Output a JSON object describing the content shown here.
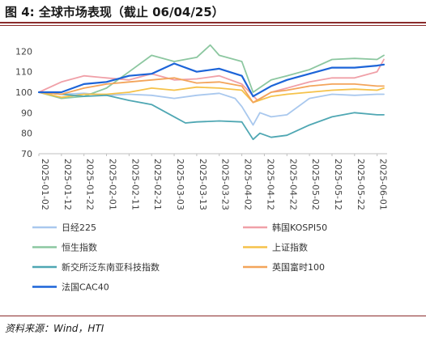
{
  "figure": {
    "title": "图 4:  全球市场表现（截止 06/04/25）",
    "source": "资料来源：Wind，HTI"
  },
  "chart_data": {
    "type": "line",
    "ylim": [
      70,
      130
    ],
    "yticks": [
      70,
      80,
      90,
      100,
      110,
      120
    ],
    "xlim": [
      "2025-01-02",
      "2025-06-04"
    ],
    "x_ticks": [
      "2025-01-02",
      "2025-01-12",
      "2025-01-22",
      "2025-02-01",
      "2025-02-11",
      "2025-02-21",
      "2025-03-03",
      "2025-03-13",
      "2025-03-23",
      "2025-04-02",
      "2025-04-12",
      "2025-04-22",
      "2025-05-02",
      "2025-05-12",
      "2025-05-22",
      "2025-06-01"
    ],
    "grid": false,
    "legend_position": "bottom",
    "series": [
      {
        "name": "日经225",
        "color": "#a9c8ee",
        "points": [
          [
            "2025-01-02",
            100
          ],
          [
            "2025-01-12",
            99
          ],
          [
            "2025-01-22",
            99.5
          ],
          [
            "2025-02-01",
            98.5
          ],
          [
            "2025-02-11",
            99
          ],
          [
            "2025-02-21",
            98.5
          ],
          [
            "2025-03-03",
            97
          ],
          [
            "2025-03-13",
            98.5
          ],
          [
            "2025-03-23",
            99.5
          ],
          [
            "2025-03-30",
            97
          ],
          [
            "2025-04-02",
            93
          ],
          [
            "2025-04-07",
            84
          ],
          [
            "2025-04-10",
            90
          ],
          [
            "2025-04-15",
            88
          ],
          [
            "2025-04-22",
            89
          ],
          [
            "2025-05-02",
            97
          ],
          [
            "2025-05-12",
            99
          ],
          [
            "2025-05-22",
            98.5
          ],
          [
            "2025-06-01",
            99
          ],
          [
            "2025-06-04",
            99
          ]
        ]
      },
      {
        "name": "韩国KOSPI50",
        "color": "#f0a0a8",
        "points": [
          [
            "2025-01-02",
            100
          ],
          [
            "2025-01-12",
            105
          ],
          [
            "2025-01-22",
            108
          ],
          [
            "2025-02-01",
            107
          ],
          [
            "2025-02-11",
            106
          ],
          [
            "2025-02-21",
            109
          ],
          [
            "2025-03-03",
            106
          ],
          [
            "2025-03-13",
            106.5
          ],
          [
            "2025-03-23",
            108
          ],
          [
            "2025-04-02",
            104
          ],
          [
            "2025-04-09",
            96
          ],
          [
            "2025-04-15",
            100
          ],
          [
            "2025-04-22",
            102
          ],
          [
            "2025-05-02",
            105
          ],
          [
            "2025-05-12",
            107
          ],
          [
            "2025-05-22",
            107
          ],
          [
            "2025-06-01",
            110
          ],
          [
            "2025-06-04",
            116
          ]
        ]
      },
      {
        "name": "恒生指数",
        "color": "#8cc7a0",
        "points": [
          [
            "2025-01-02",
            100
          ],
          [
            "2025-01-12",
            97
          ],
          [
            "2025-01-22",
            98
          ],
          [
            "2025-02-01",
            102
          ],
          [
            "2025-02-11",
            110
          ],
          [
            "2025-02-21",
            118
          ],
          [
            "2025-03-03",
            115
          ],
          [
            "2025-03-13",
            117
          ],
          [
            "2025-03-19",
            123
          ],
          [
            "2025-03-23",
            118
          ],
          [
            "2025-04-02",
            115
          ],
          [
            "2025-04-07",
            100
          ],
          [
            "2025-04-15",
            106
          ],
          [
            "2025-04-22",
            108
          ],
          [
            "2025-05-02",
            111
          ],
          [
            "2025-05-12",
            116
          ],
          [
            "2025-05-22",
            116.5
          ],
          [
            "2025-06-01",
            116
          ],
          [
            "2025-06-04",
            118
          ]
        ]
      },
      {
        "name": "上证指数",
        "color": "#f5c24a",
        "points": [
          [
            "2025-01-02",
            100
          ],
          [
            "2025-01-12",
            97.5
          ],
          [
            "2025-01-22",
            99
          ],
          [
            "2025-02-01",
            99
          ],
          [
            "2025-02-11",
            100
          ],
          [
            "2025-02-21",
            102
          ],
          [
            "2025-03-03",
            101
          ],
          [
            "2025-03-13",
            102.5
          ],
          [
            "2025-03-23",
            102
          ],
          [
            "2025-04-02",
            101
          ],
          [
            "2025-04-07",
            95
          ],
          [
            "2025-04-15",
            98
          ],
          [
            "2025-04-22",
            99
          ],
          [
            "2025-05-02",
            100
          ],
          [
            "2025-05-12",
            101
          ],
          [
            "2025-05-22",
            101.5
          ],
          [
            "2025-06-01",
            101
          ],
          [
            "2025-06-04",
            102
          ]
        ]
      },
      {
        "name": "新交所泛东南亚科技指数",
        "color": "#4fa7b3",
        "points": [
          [
            "2025-01-02",
            100
          ],
          [
            "2025-01-12",
            99
          ],
          [
            "2025-01-22",
            98
          ],
          [
            "2025-02-01",
            98.5
          ],
          [
            "2025-02-11",
            96
          ],
          [
            "2025-02-21",
            94
          ],
          [
            "2025-03-03",
            88
          ],
          [
            "2025-03-08",
            85
          ],
          [
            "2025-03-13",
            85.5
          ],
          [
            "2025-03-23",
            86
          ],
          [
            "2025-04-02",
            85.5
          ],
          [
            "2025-04-07",
            77
          ],
          [
            "2025-04-10",
            80
          ],
          [
            "2025-04-15",
            78
          ],
          [
            "2025-04-22",
            79
          ],
          [
            "2025-05-02",
            84
          ],
          [
            "2025-05-12",
            88
          ],
          [
            "2025-05-22",
            90
          ],
          [
            "2025-06-01",
            89
          ],
          [
            "2025-06-04",
            89
          ]
        ]
      },
      {
        "name": "英国富时100",
        "color": "#f3a45a",
        "points": [
          [
            "2025-01-02",
            100
          ],
          [
            "2025-01-12",
            99
          ],
          [
            "2025-01-22",
            102
          ],
          [
            "2025-02-01",
            104
          ],
          [
            "2025-02-11",
            105
          ],
          [
            "2025-02-21",
            106
          ],
          [
            "2025-03-03",
            107
          ],
          [
            "2025-03-13",
            104.5
          ],
          [
            "2025-03-23",
            105
          ],
          [
            "2025-04-02",
            103
          ],
          [
            "2025-04-07",
            95
          ],
          [
            "2025-04-15",
            100
          ],
          [
            "2025-04-22",
            101
          ],
          [
            "2025-05-02",
            103
          ],
          [
            "2025-05-12",
            104
          ],
          [
            "2025-05-22",
            104
          ],
          [
            "2025-06-01",
            103
          ],
          [
            "2025-06-04",
            103
          ]
        ]
      },
      {
        "name": "法国CAC40",
        "color": "#1c64d8",
        "points": [
          [
            "2025-01-02",
            100
          ],
          [
            "2025-01-12",
            100
          ],
          [
            "2025-01-22",
            104
          ],
          [
            "2025-02-01",
            105
          ],
          [
            "2025-02-11",
            108
          ],
          [
            "2025-02-21",
            109
          ],
          [
            "2025-03-03",
            114
          ],
          [
            "2025-03-13",
            110
          ],
          [
            "2025-03-23",
            111.5
          ],
          [
            "2025-04-02",
            108
          ],
          [
            "2025-04-07",
            98
          ],
          [
            "2025-04-15",
            103
          ],
          [
            "2025-04-22",
            106
          ],
          [
            "2025-05-02",
            109
          ],
          [
            "2025-05-12",
            112
          ],
          [
            "2025-05-22",
            112
          ],
          [
            "2025-06-01",
            113
          ],
          [
            "2025-06-04",
            113.5
          ]
        ]
      }
    ]
  }
}
